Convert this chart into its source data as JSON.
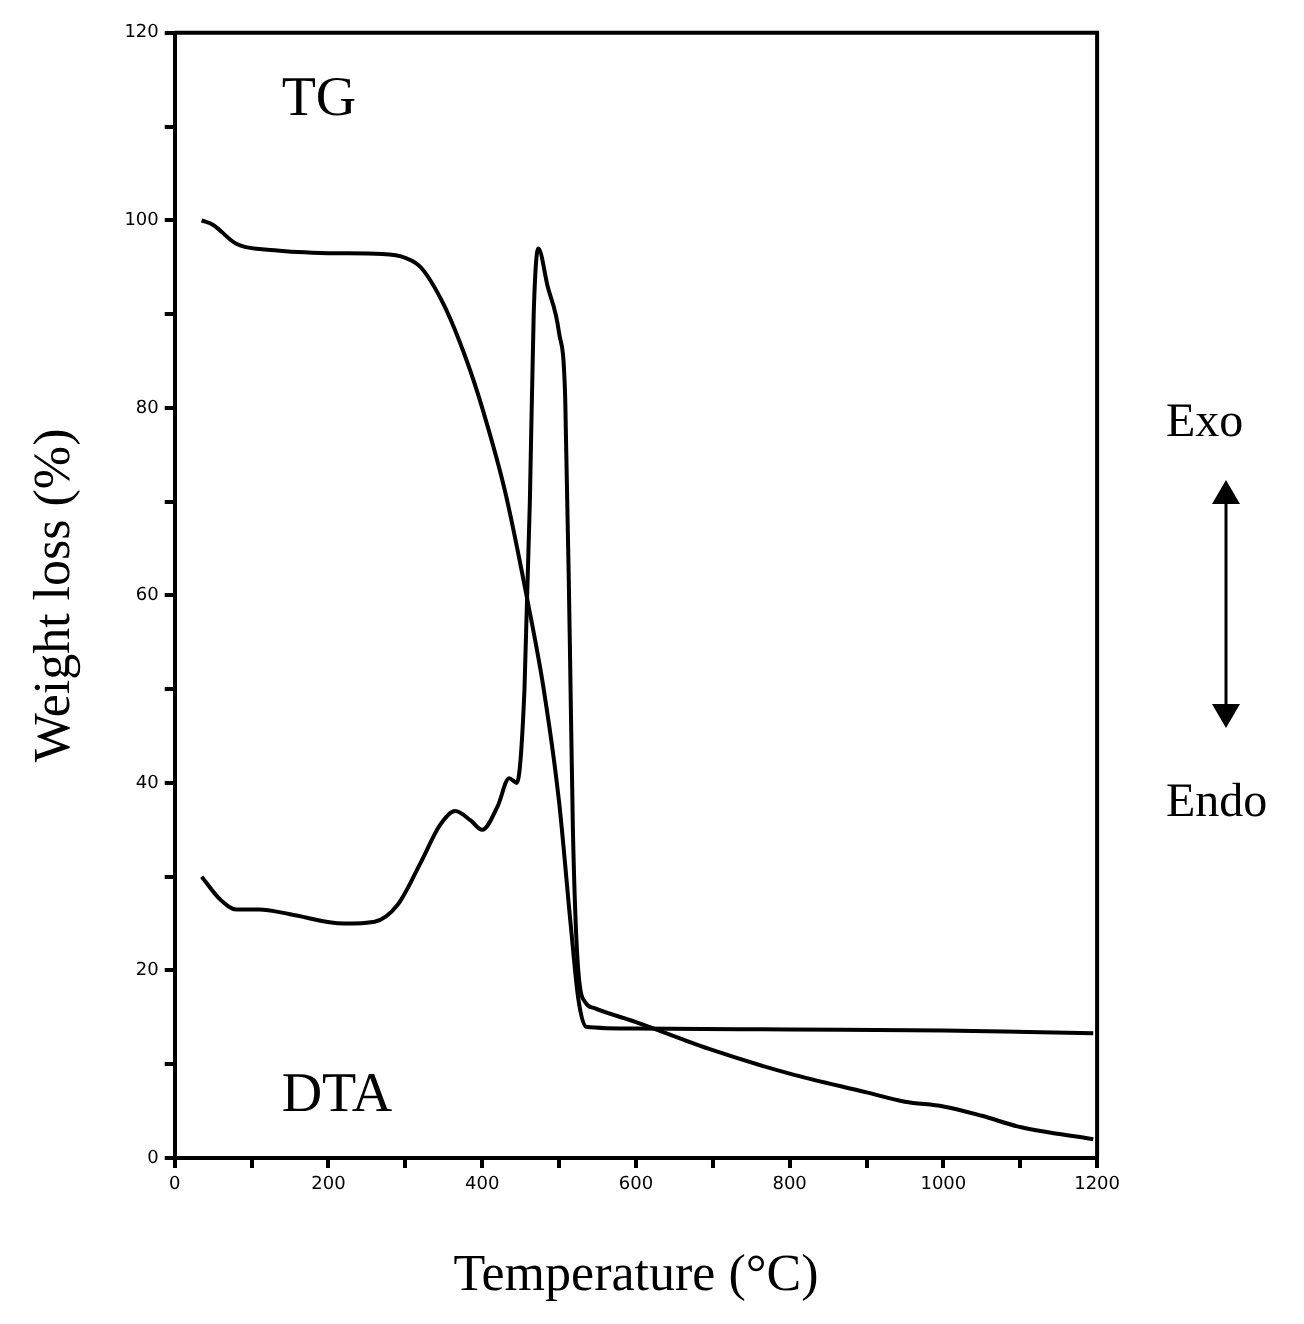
{
  "chart_data": {
    "type": "line",
    "xlabel": "Temperature (°C)",
    "ylabel": "Weight loss (%)",
    "xlim": [
      0,
      1200
    ],
    "xticks": [
      0,
      {
        "value": 100,
        "label": null
      },
      200,
      {
        "value": 300,
        "label": null
      },
      400,
      {
        "value": 500,
        "label": null
      },
      600,
      {
        "value": 700,
        "label": null
      },
      800,
      {
        "value": 900,
        "label": null
      },
      1000,
      {
        "value": 1100,
        "label": null
      },
      1200
    ],
    "ylim": [
      0,
      120
    ],
    "yticks": [
      0,
      {
        "value": 10,
        "label": null
      },
      20,
      {
        "value": 30,
        "label": null
      },
      40,
      {
        "value": 50,
        "label": null
      },
      60,
      {
        "value": 70,
        "label": null
      },
      80,
      {
        "value": 90,
        "label": null
      },
      100,
      {
        "value": 110,
        "label": null
      },
      120
    ],
    "grid": false,
    "legend": false,
    "marker": "none",
    "line_style": "solid",
    "series": [
      {
        "name": "TG",
        "color": "#000000",
        "x": [
          35,
          50,
          80,
          130,
          200,
          270,
          300,
          320,
          350,
          380,
          400,
          430,
          460,
          480,
          500,
          515,
          525,
          535,
          600,
          800,
          1000,
          1195
        ],
        "values": [
          100,
          99.5,
          97.5,
          96.8,
          96.5,
          96.4,
          96,
          95,
          91,
          85,
          80,
          71,
          59,
          50,
          38,
          25,
          17,
          14,
          13.8,
          13.7,
          13.6,
          13.3
        ]
      },
      {
        "name": "DTA",
        "color": "#000000",
        "x": [
          35,
          60,
          80,
          110,
          150,
          220,
          260,
          290,
          320,
          345,
          365,
          385,
          400,
          420,
          435,
          445,
          455,
          462,
          467,
          473,
          485,
          500,
          508,
          514,
          518,
          525,
          535,
          545,
          600,
          700,
          800,
          900,
          950,
          1000,
          1050,
          1100,
          1195
        ],
        "values": [
          30,
          27.5,
          26.5,
          26.5,
          26,
          25,
          25.2,
          27,
          31.5,
          35.5,
          37,
          36,
          35,
          37.5,
          40.5,
          40,
          50,
          70,
          90,
          97,
          93,
          88,
          81,
          55,
          35,
          20,
          16.5,
          16,
          14.5,
          11.5,
          9,
          7,
          6,
          5.5,
          4.5,
          3.3,
          2
        ]
      }
    ],
    "annotations": [
      "Exo",
      "Endo"
    ]
  }
}
